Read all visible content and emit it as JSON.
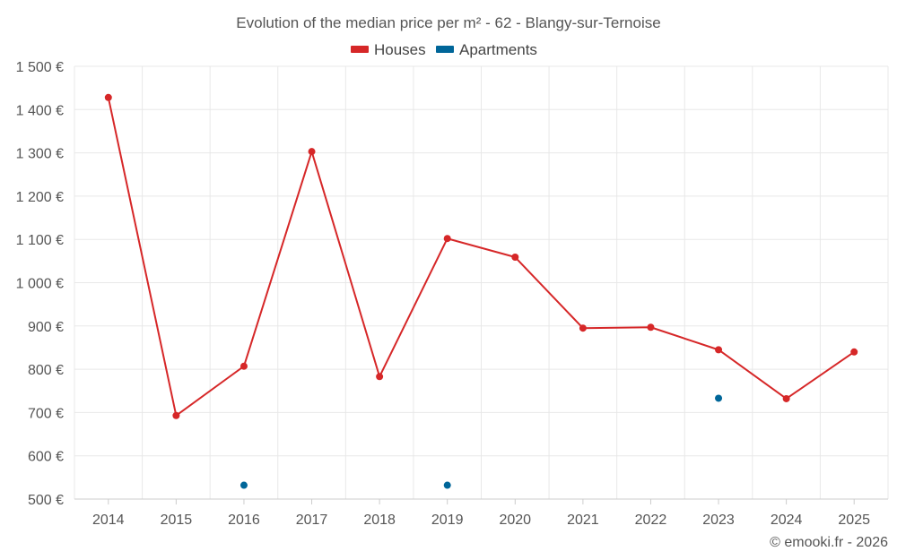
{
  "chart_data": {
    "type": "line",
    "title": "Evolution of the median price per m² - 62 - Blangy-sur-Ternoise",
    "categories": [
      "2014",
      "2015",
      "2016",
      "2017",
      "2018",
      "2019",
      "2020",
      "2021",
      "2022",
      "2023",
      "2024",
      "2025"
    ],
    "series": [
      {
        "name": "Houses",
        "color": "#d62728",
        "show_line": true,
        "values": [
          1428,
          693,
          807,
          1303,
          783,
          1102,
          1059,
          895,
          897,
          845,
          732,
          840
        ]
      },
      {
        "name": "Apartments",
        "color": "#006699",
        "show_line": false,
        "values": [
          null,
          null,
          532,
          null,
          null,
          532,
          null,
          null,
          null,
          733,
          null,
          null
        ]
      }
    ],
    "ylim": [
      500,
      1500
    ],
    "yticks": [
      500,
      600,
      700,
      800,
      900,
      1000,
      1100,
      1200,
      1300,
      1400,
      1500
    ],
    "ytick_labels": [
      "500 €",
      "600 €",
      "700 €",
      "800 €",
      "900 €",
      "1 000 €",
      "1 100 €",
      "1 200 €",
      "1 300 €",
      "1 400 €",
      "1 500 €"
    ],
    "xlabel": "",
    "ylabel": "",
    "grid": true,
    "legend_position": "top-center"
  },
  "credit": "© emooki.fr - 2026"
}
